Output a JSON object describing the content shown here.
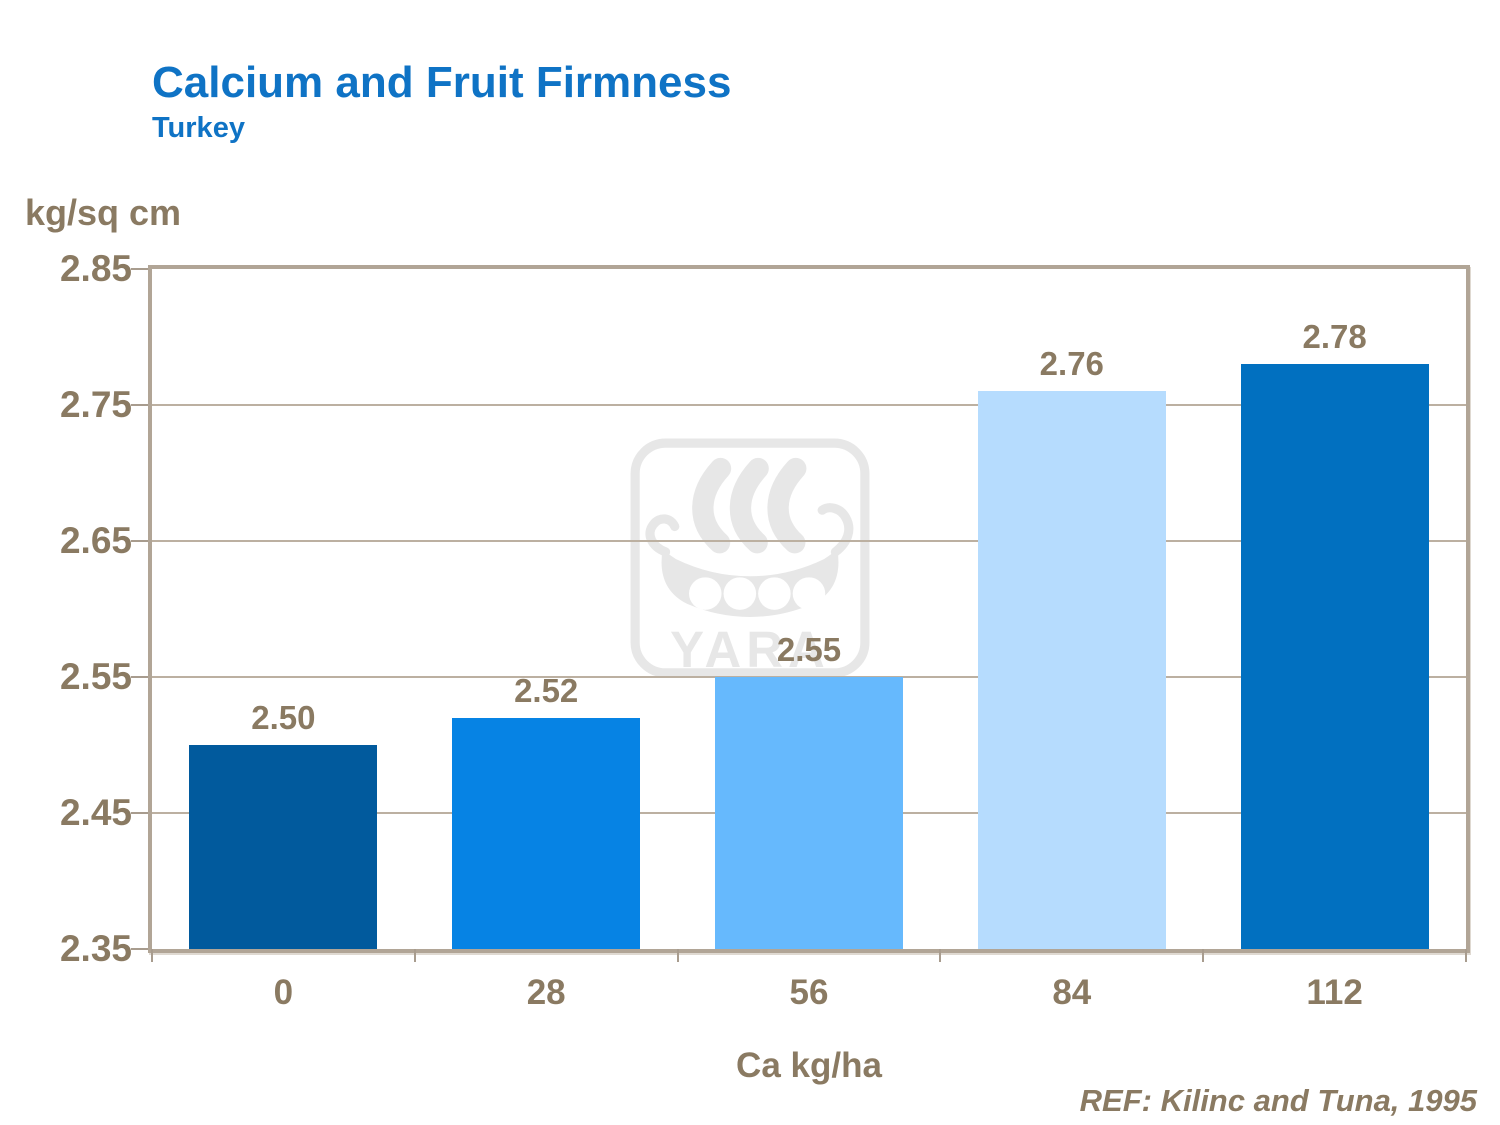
{
  "header": {
    "title": "Calcium and Fruit Firmness",
    "subtitle": "Turkey"
  },
  "chart_data": {
    "type": "bar",
    "title": "Calcium and Fruit Firmness",
    "subtitle": "Turkey",
    "unit_label": "kg/sq cm",
    "xlabel": "Ca kg/ha",
    "categories": [
      "0",
      "28",
      "56",
      "84",
      "112"
    ],
    "values": [
      2.5,
      2.52,
      2.55,
      2.76,
      2.78
    ],
    "value_labels": [
      "2.50",
      "2.52",
      "2.55",
      "2.76",
      "2.78"
    ],
    "bar_colors": [
      "#015a9d",
      "#0683e4",
      "#66b9fd",
      "#b6dcfe",
      "#0170c0"
    ],
    "ylim": [
      2.35,
      2.85
    ],
    "yticks": [
      2.85,
      2.75,
      2.65,
      2.55,
      2.45,
      2.35
    ],
    "ytick_labels": [
      "2.85",
      "2.75",
      "2.65",
      "2.55",
      "2.45",
      "2.35"
    ],
    "grid": true,
    "legend": "none",
    "reference": "REF: Kilinc and Tuna, 1995"
  },
  "watermark": {
    "text": "YARA",
    "icon": "viking-ship-icon",
    "color": "#e7e7e7"
  },
  "colors": {
    "title_blue": "#0f73c5",
    "axis_text_brown": "#8a7a62",
    "gridline": "#bcb0a1",
    "plot_border": "#b1a596"
  }
}
